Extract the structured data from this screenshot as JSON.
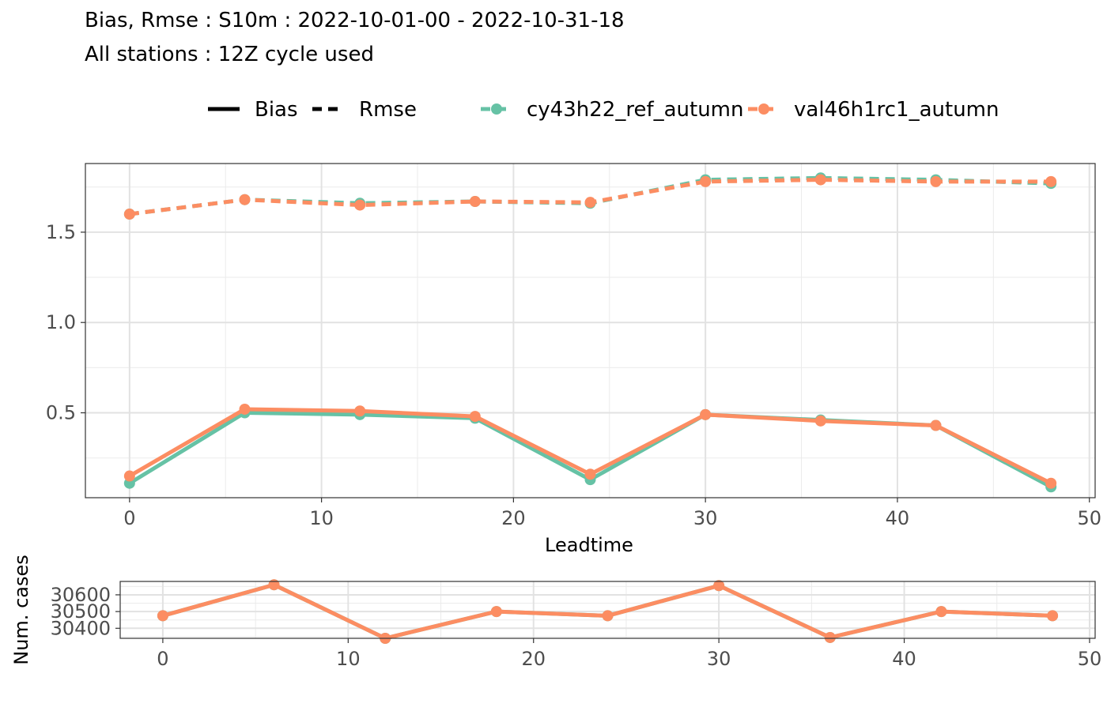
{
  "header": {
    "title": "Bias, Rmse : S10m : 2022-10-01-00 - 2022-10-31-18",
    "subtitle": "All stations : 12Z cycle used"
  },
  "legend": {
    "linetype_items": [
      {
        "label": "Bias",
        "dash": "solid"
      },
      {
        "label": "Rmse",
        "dash": "dashed"
      }
    ],
    "color_items": [
      {
        "label": "cy43h22_ref_autumn",
        "color": "#66C2A5"
      },
      {
        "label": "val46h1rc1_autumn",
        "color": "#FC8D62"
      }
    ]
  },
  "chart_data": [
    {
      "type": "line",
      "title": "",
      "xlabel": "Leadtime",
      "ylabel": "",
      "xlim": [
        -2.3,
        50.3
      ],
      "ylim": [
        0.03,
        1.88
      ],
      "x_ticks": [
        0,
        10,
        20,
        30,
        40,
        50
      ],
      "y_ticks": [
        0.5,
        1.0,
        1.5
      ],
      "y_tick_labels": [
        "0.5",
        "1.0",
        "1.5"
      ],
      "grid": true,
      "legend_position": "top",
      "x": [
        0,
        6,
        12,
        18,
        24,
        30,
        36,
        42,
        48
      ],
      "series": [
        {
          "name": "cy43h22_ref_autumn",
          "metric": "Bias",
          "color": "#66C2A5",
          "dash": "solid",
          "values": [
            0.11,
            0.5,
            0.49,
            0.47,
            0.13,
            0.49,
            0.46,
            0.43,
            0.09
          ]
        },
        {
          "name": "val46h1rc1_autumn",
          "metric": "Bias",
          "color": "#FC8D62",
          "dash": "solid",
          "values": [
            0.15,
            0.52,
            0.51,
            0.48,
            0.16,
            0.49,
            0.455,
            0.43,
            0.11
          ]
        },
        {
          "name": "cy43h22_ref_autumn",
          "metric": "Rmse",
          "color": "#66C2A5",
          "dash": "dashed",
          "values": [
            1.6,
            1.68,
            1.66,
            1.67,
            1.66,
            1.79,
            1.8,
            1.79,
            1.77
          ]
        },
        {
          "name": "val46h1rc1_autumn",
          "metric": "Rmse",
          "color": "#FC8D62",
          "dash": "dashed",
          "values": [
            1.6,
            1.68,
            1.65,
            1.67,
            1.665,
            1.78,
            1.79,
            1.78,
            1.78
          ]
        }
      ]
    },
    {
      "type": "line",
      "title": "",
      "xlabel": "",
      "ylabel": "Num. cases",
      "xlim": [
        -2.3,
        50.3
      ],
      "ylim": [
        30340,
        30680
      ],
      "x_ticks": [
        0,
        10,
        20,
        30,
        40,
        50
      ],
      "y_ticks": [
        30400,
        30500,
        30600
      ],
      "grid": true,
      "x": [
        0,
        6,
        12,
        18,
        24,
        30,
        36,
        42,
        48
      ],
      "series": [
        {
          "name": "cy43h22_ref_autumn",
          "color": "#66C2A5",
          "values": [
            30475,
            30660,
            30340,
            30500,
            30475,
            30655,
            30345,
            30500,
            30475
          ]
        },
        {
          "name": "val46h1rc1_autumn",
          "color": "#FC8D62",
          "values": [
            30475,
            30660,
            30340,
            30500,
            30475,
            30655,
            30345,
            30500,
            30475
          ]
        }
      ]
    }
  ]
}
